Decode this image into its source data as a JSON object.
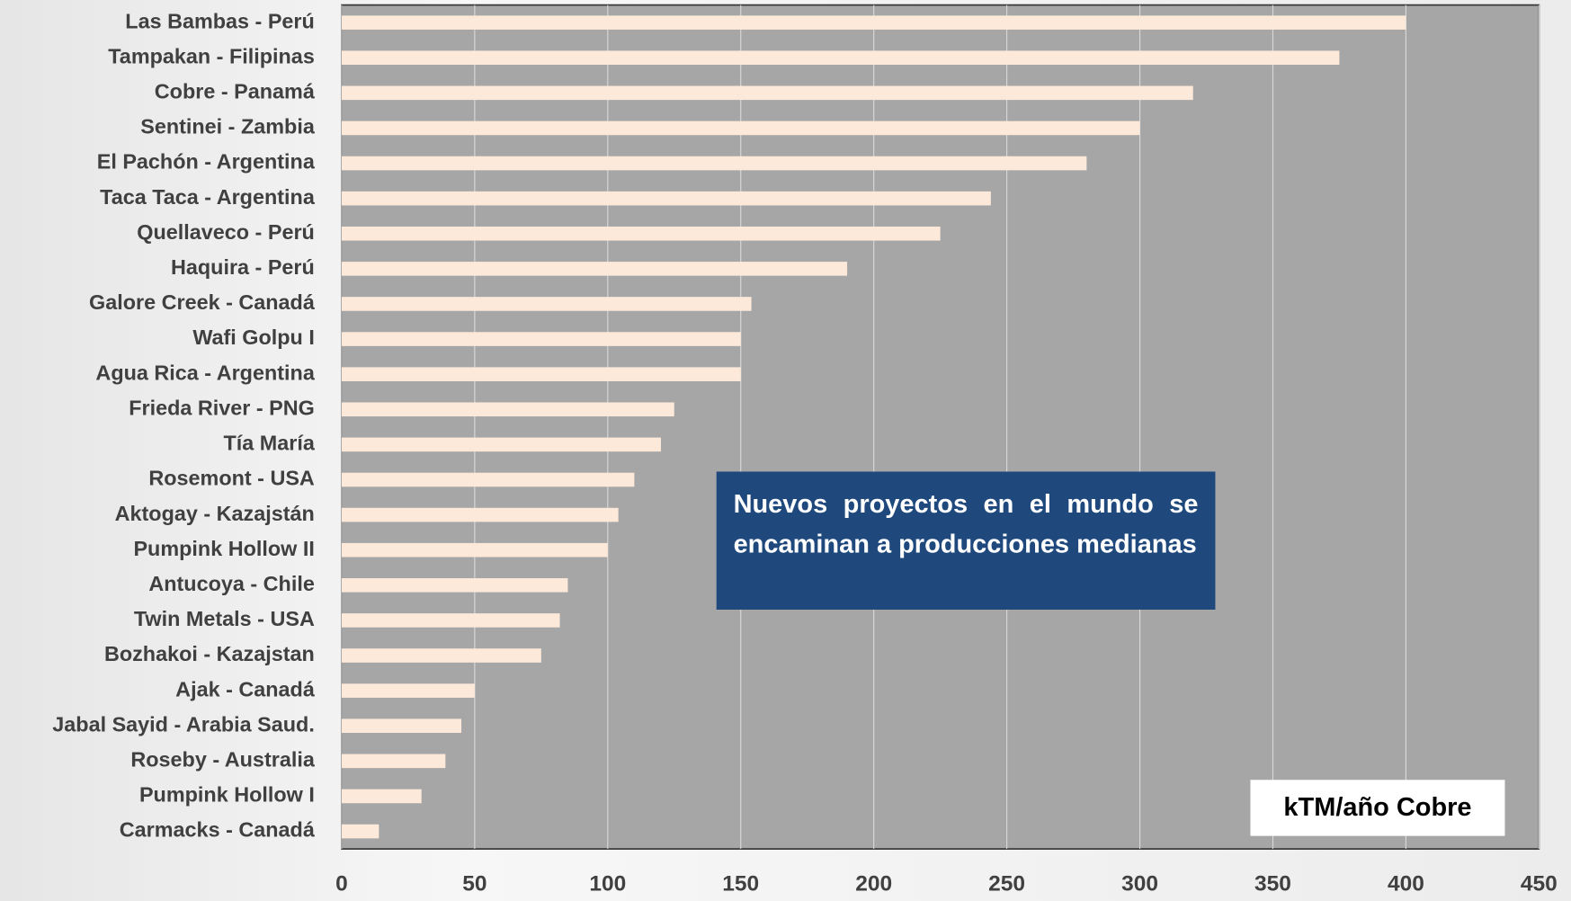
{
  "chart_data": {
    "type": "bar",
    "orientation": "horizontal",
    "categories": [
      "Las Bambas - Perú",
      "Tampakan - Filipinas",
      "Cobre - Panamá",
      "Sentinei - Zambia",
      "El Pachón - Argentina",
      "Taca Taca - Argentina",
      "Quellaveco - Perú",
      "Haquira - Perú",
      "Galore Creek - Canadá",
      "Wafi Golpu I",
      "Agua Rica - Argentina",
      "Frieda River - PNG",
      "Tía María",
      "Rosemont - USA",
      "Aktogay - Kazajstán",
      "Pumpink Hollow II",
      "Antucoya - Chile",
      "Twin Metals - USA",
      "Bozhakoi - Kazajstan",
      "Ajak - Canadá",
      "Jabal Sayid - Arabia Saud.",
      "Roseby - Australia",
      "Pumpink Hollow I",
      "Carmacks - Canadá"
    ],
    "values": [
      400,
      375,
      320,
      300,
      280,
      244,
      225,
      190,
      154,
      150,
      150,
      125,
      120,
      110,
      104,
      100,
      85,
      82,
      75,
      50,
      45,
      39,
      30,
      14
    ],
    "color": "#fde9d9",
    "xlim": [
      0,
      450
    ],
    "xticks": [
      0,
      50,
      100,
      150,
      200,
      250,
      300,
      350,
      400,
      450
    ],
    "grid": true,
    "annotation": "Nuevos proyectos en el mundo se encaminan a producciones medianas",
    "legend_label": "kTM/año Cobre"
  }
}
